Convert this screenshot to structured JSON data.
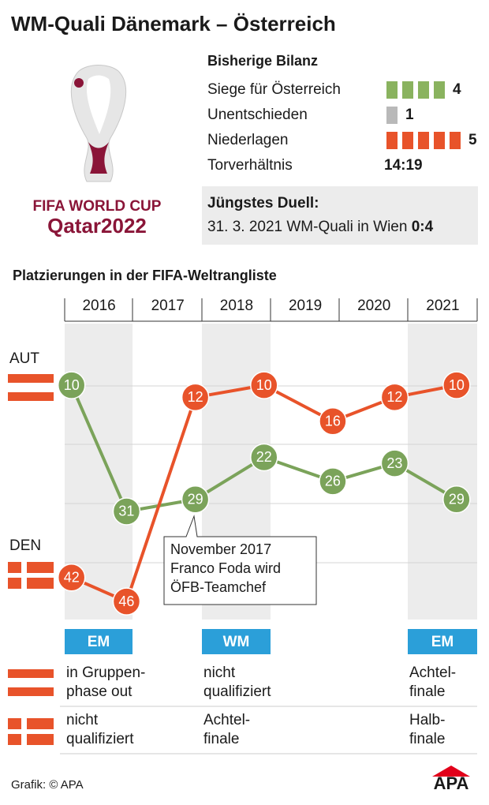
{
  "title": "WM-Quali Dänemark – Österreich",
  "logo": {
    "line1": "FIFA WORLD CUP",
    "line2": "Qatar2022"
  },
  "bilanz": {
    "title": "Bisherige Bilanz",
    "rows": [
      {
        "label": "Siege für Österreich",
        "value": 4,
        "color": "#8ab35f"
      },
      {
        "label": "Unentschieden",
        "value": 1,
        "color": "#b9b9b9"
      },
      {
        "label": "Niederlagen",
        "value": 5,
        "color": "#e8532a"
      }
    ],
    "goals": {
      "label": "Torverhältnis",
      "value": "14:19"
    }
  },
  "duell": {
    "title": "Jüngstes Duell:",
    "text": "31. 3. 2021 WM-Quali in Wien",
    "score": "0:4"
  },
  "chart_data": {
    "type": "line",
    "title": "Platzierungen in der FIFA-Weltrangliste",
    "x": [
      2016.1,
      2016.9,
      2017.9,
      2018.9,
      2019.9,
      2020.8,
      2021.7
    ],
    "xlim": [
      2016,
      2022
    ],
    "xticks": [
      {
        "value": 2016.5,
        "label": "2016"
      },
      {
        "value": 2017.5,
        "label": "2017"
      },
      {
        "value": 2018.5,
        "label": "2018"
      },
      {
        "value": 2019.5,
        "label": "2019"
      },
      {
        "value": 2020.5,
        "label": "2020"
      },
      {
        "value": 2021.5,
        "label": "2021"
      }
    ],
    "ylim": [
      49,
      0
    ],
    "series": [
      {
        "name": "AUT",
        "color": "#7ba35a",
        "values": [
          10,
          31,
          29,
          22,
          26,
          23,
          29
        ]
      },
      {
        "name": "DEN",
        "color": "#e8532a",
        "values": [
          42,
          46,
          12,
          10,
          16,
          12,
          10
        ]
      }
    ],
    "annotation": [
      "November 2017",
      "Franco Foda wird",
      "ÖFB-Teamchef"
    ]
  },
  "tournaments": [
    {
      "name": "EM",
      "aut": [
        "in Gruppen-",
        "phase out"
      ],
      "den": [
        "nicht",
        "qualifiziert"
      ]
    },
    {
      "name": "WM",
      "aut": [
        "nicht",
        "qualifiziert"
      ],
      "den": [
        "Achtel-",
        "finale"
      ]
    },
    {
      "name": "EM",
      "aut": [
        "Achtel-",
        "finale"
      ],
      "den": [
        "Halb-",
        "finale"
      ]
    }
  ],
  "footer": {
    "credit": "Grafik: © APA",
    "brand": "APA"
  }
}
